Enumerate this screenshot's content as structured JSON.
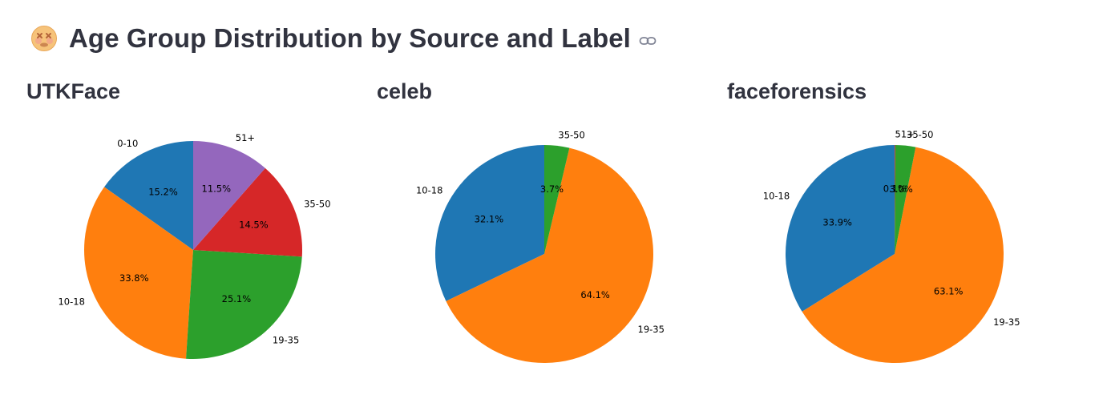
{
  "page": {
    "title": "Age Group Distribution by Source and Label",
    "emoji_icon": "face-with-crossed-out-eyes-icon",
    "link_icon": "link-icon"
  },
  "chart_data": [
    {
      "type": "pie",
      "title": "UTKFace",
      "categories": [
        "0-10",
        "10-18",
        "19-35",
        "35-50",
        "51+"
      ],
      "values": [
        15.2,
        33.8,
        25.1,
        14.5,
        11.5
      ],
      "value_labels": [
        "15.2%",
        "33.8%",
        "25.1%",
        "14.5%",
        "11.5%"
      ],
      "colors": [
        "#1f77b4",
        "#ff7f0e",
        "#2ca02c",
        "#d62728",
        "#9467bd"
      ],
      "start_angle_deg": 90,
      "direction": "counterclockwise"
    },
    {
      "type": "pie",
      "title": "celeb",
      "categories": [
        "10-18",
        "19-35",
        "35-50"
      ],
      "values": [
        32.1,
        64.1,
        3.7
      ],
      "value_labels": [
        "32.1%",
        "64.1%",
        "3.7%"
      ],
      "colors": [
        "#1f77b4",
        "#ff7f0e",
        "#2ca02c"
      ],
      "start_angle_deg": 90,
      "direction": "counterclockwise"
    },
    {
      "type": "pie",
      "title": "faceforensics",
      "categories": [
        "10-18",
        "19-35",
        "35-50",
        "51+"
      ],
      "values": [
        33.9,
        63.1,
        3.0,
        0.1
      ],
      "value_labels": [
        "33.9%",
        "63.1%",
        "3.0%",
        "0.1%"
      ],
      "colors": [
        "#1f77b4",
        "#ff7f0e",
        "#2ca02c",
        "#d62728"
      ],
      "start_angle_deg": 90,
      "direction": "counterclockwise"
    }
  ]
}
